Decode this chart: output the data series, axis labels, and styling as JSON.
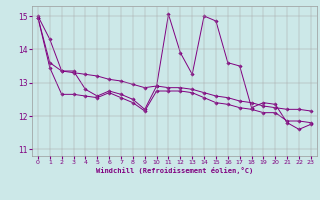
{
  "background_color": "#cce8e8",
  "line_color": "#800080",
  "xlabel": "Windchill (Refroidissement éolien,°C)",
  "xlim": [
    -0.5,
    23.5
  ],
  "ylim": [
    10.8,
    15.3
  ],
  "yticks": [
    11,
    12,
    13,
    14,
    15
  ],
  "xticks": [
    0,
    1,
    2,
    3,
    4,
    5,
    6,
    7,
    8,
    9,
    10,
    11,
    12,
    13,
    14,
    15,
    16,
    17,
    18,
    19,
    20,
    21,
    22,
    23
  ],
  "series_spiky_x": [
    0,
    1,
    2,
    3,
    4,
    5,
    6,
    7,
    8,
    9,
    10,
    11,
    12,
    13,
    14,
    15,
    16,
    17,
    18,
    19,
    20,
    21,
    22,
    23
  ],
  "series_spiky_y": [
    15.0,
    14.3,
    13.35,
    13.35,
    12.8,
    12.6,
    12.75,
    12.65,
    12.5,
    12.2,
    12.9,
    15.05,
    13.9,
    13.25,
    15.0,
    14.85,
    13.6,
    13.5,
    12.25,
    12.4,
    12.35,
    11.8,
    11.6,
    11.75
  ],
  "series_upper_x": [
    0,
    1,
    2,
    3,
    4,
    5,
    6,
    7,
    8,
    9,
    10,
    11,
    12,
    13,
    14,
    15,
    16,
    17,
    18,
    19,
    20,
    21,
    22,
    23
  ],
  "series_upper_y": [
    14.95,
    13.6,
    13.35,
    13.3,
    13.25,
    13.2,
    13.1,
    13.05,
    12.95,
    12.85,
    12.9,
    12.85,
    12.85,
    12.8,
    12.7,
    12.6,
    12.55,
    12.45,
    12.4,
    12.3,
    12.25,
    12.2,
    12.2,
    12.15
  ],
  "series_lower_x": [
    0,
    1,
    2,
    3,
    4,
    5,
    6,
    7,
    8,
    9,
    10,
    11,
    12,
    13,
    14,
    15,
    16,
    17,
    18,
    19,
    20,
    21,
    22,
    23
  ],
  "series_lower_y": [
    14.95,
    13.45,
    12.65,
    12.65,
    12.6,
    12.55,
    12.7,
    12.55,
    12.4,
    12.15,
    12.75,
    12.75,
    12.75,
    12.7,
    12.55,
    12.4,
    12.35,
    12.25,
    12.2,
    12.1,
    12.1,
    11.85,
    11.85,
    11.8
  ]
}
